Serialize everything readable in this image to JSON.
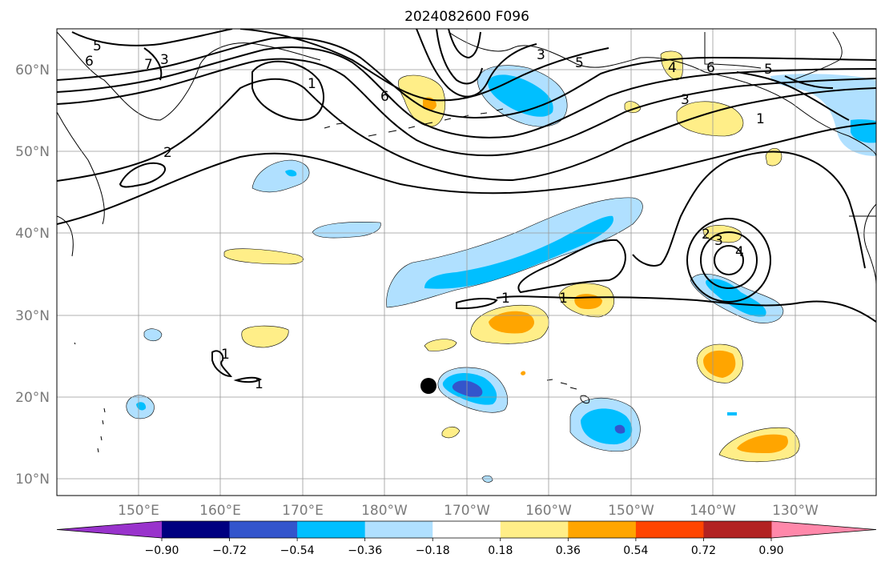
{
  "title": "2024082600 F096",
  "lat_labels": [
    "60°N",
    "50°N",
    "40°N",
    "30°N",
    "20°N",
    "10°N"
  ],
  "lon_labels": [
    "150°E",
    "160°E",
    "170°E",
    "180°W",
    "170°W",
    "160°W",
    "150°W",
    "140°W",
    "130°W"
  ],
  "colorbar": {
    "ticks": [
      "−0.90",
      "−0.72",
      "−0.54",
      "−0.36",
      "−0.18",
      "0.18",
      "0.36",
      "0.54",
      "0.72",
      "0.90"
    ],
    "colors": [
      "#9933cc",
      "#000080",
      "#3355cc",
      "#00bfff",
      "#b0e0ff",
      "#ffffff",
      "#ffee88",
      "#ffa500",
      "#ff4500",
      "#b22222",
      "#ff88aa"
    ]
  },
  "fill_colors": {
    "light_blue": "#b0e0ff",
    "blue": "#00bfff",
    "dark_blue": "#3355cc",
    "light_yellow": "#ffee88",
    "orange": "#ffa500"
  },
  "contour_labels": [
    "5",
    "6",
    "7",
    "3",
    "1",
    "2",
    "6",
    "3",
    "5",
    "4",
    "6",
    "5",
    "3",
    "1",
    "1",
    "1",
    "1",
    "2",
    "3",
    "4",
    "1"
  ],
  "marker": "storm-position-dot"
}
